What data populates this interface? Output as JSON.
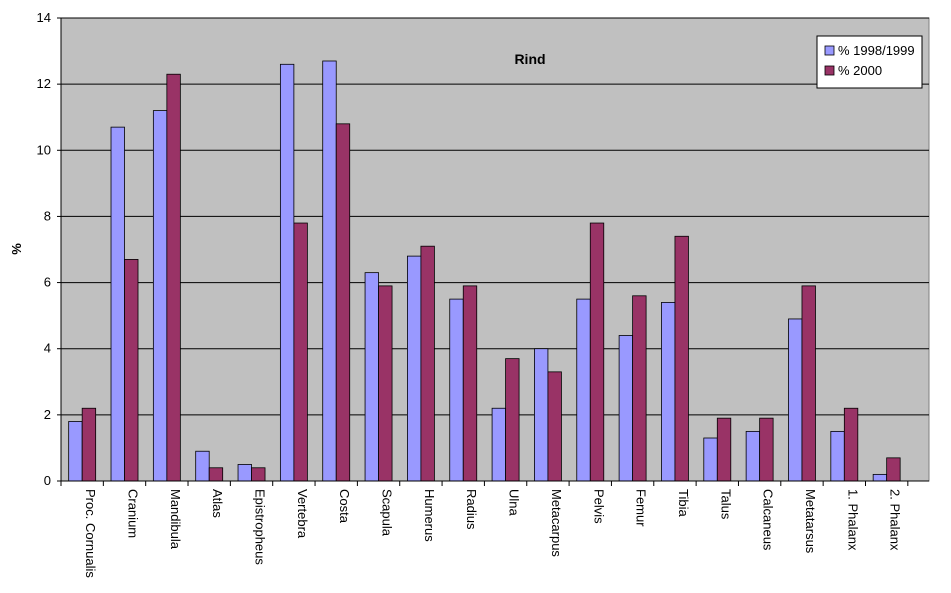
{
  "chart_data": {
    "type": "bar",
    "title": "Rind",
    "xlabel": "",
    "ylabel": "%",
    "ylim": [
      0,
      14
    ],
    "yticks": [
      0,
      2,
      4,
      6,
      8,
      10,
      12,
      14
    ],
    "grid": true,
    "legend_position": "top-right",
    "categories": [
      "Proc. Cornualis",
      "Cranium",
      "Mandibula",
      "Atlas",
      "Epistropheus",
      "Vertebra",
      "Costa",
      "Scapula",
      "Humerus",
      "Radius",
      "Ulna",
      "Metacarpus",
      "Pelvis",
      "Femur",
      "Tibia",
      "Talus",
      "Calcaneus",
      "Metatarsus",
      "1. Phalanx",
      "2. Phalanx"
    ],
    "series": [
      {
        "name": "% 1998/1999",
        "color": "#9999ff",
        "values": [
          1.8,
          10.7,
          11.2,
          0.9,
          0.5,
          12.6,
          12.7,
          6.3,
          6.8,
          5.5,
          2.2,
          4.0,
          5.5,
          4.4,
          5.4,
          1.3,
          1.5,
          4.9,
          1.5,
          0.2
        ]
      },
      {
        "name": "% 2000",
        "color": "#993366",
        "values": [
          2.2,
          6.7,
          12.3,
          0.4,
          0.4,
          7.8,
          10.8,
          5.9,
          7.1,
          5.9,
          3.7,
          3.3,
          7.8,
          5.6,
          7.4,
          1.9,
          1.9,
          5.9,
          2.2,
          0.7
        ]
      }
    ],
    "colors": {
      "plot_background": "#c0c0c0",
      "gridline": "#000000"
    }
  }
}
